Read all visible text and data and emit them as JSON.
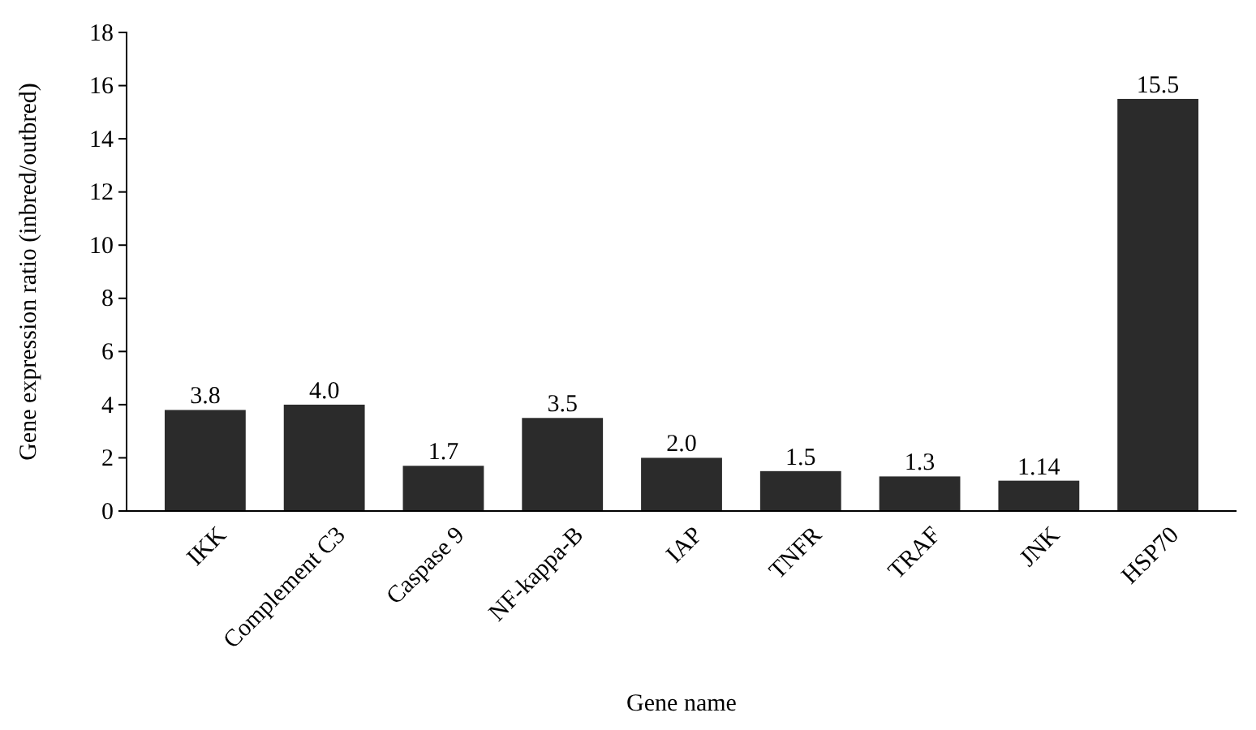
{
  "chart_data": {
    "type": "bar",
    "xlabel": "Gene name",
    "ylabel": "Gene expression ratio (inbred/outbred)",
    "categories": [
      "IKK",
      "Complement C3",
      "Caspase 9",
      "NF-kappa-B",
      "IAP",
      "TNFR",
      "TRAF",
      "JNK",
      "HSP70"
    ],
    "values": [
      3.8,
      4.0,
      1.7,
      3.5,
      2.0,
      1.5,
      1.3,
      1.14,
      15.5
    ],
    "value_labels": [
      "3.8",
      "4.0",
      "1.7",
      "3.5",
      "2.0",
      "1.5",
      "1.3",
      "1.14",
      "15.5"
    ],
    "color": "#2b2b2b",
    "ylim": [
      0,
      18
    ],
    "yticks": [
      0,
      2,
      4,
      6,
      8,
      10,
      12,
      14,
      16,
      18
    ],
    "grid": false
  }
}
